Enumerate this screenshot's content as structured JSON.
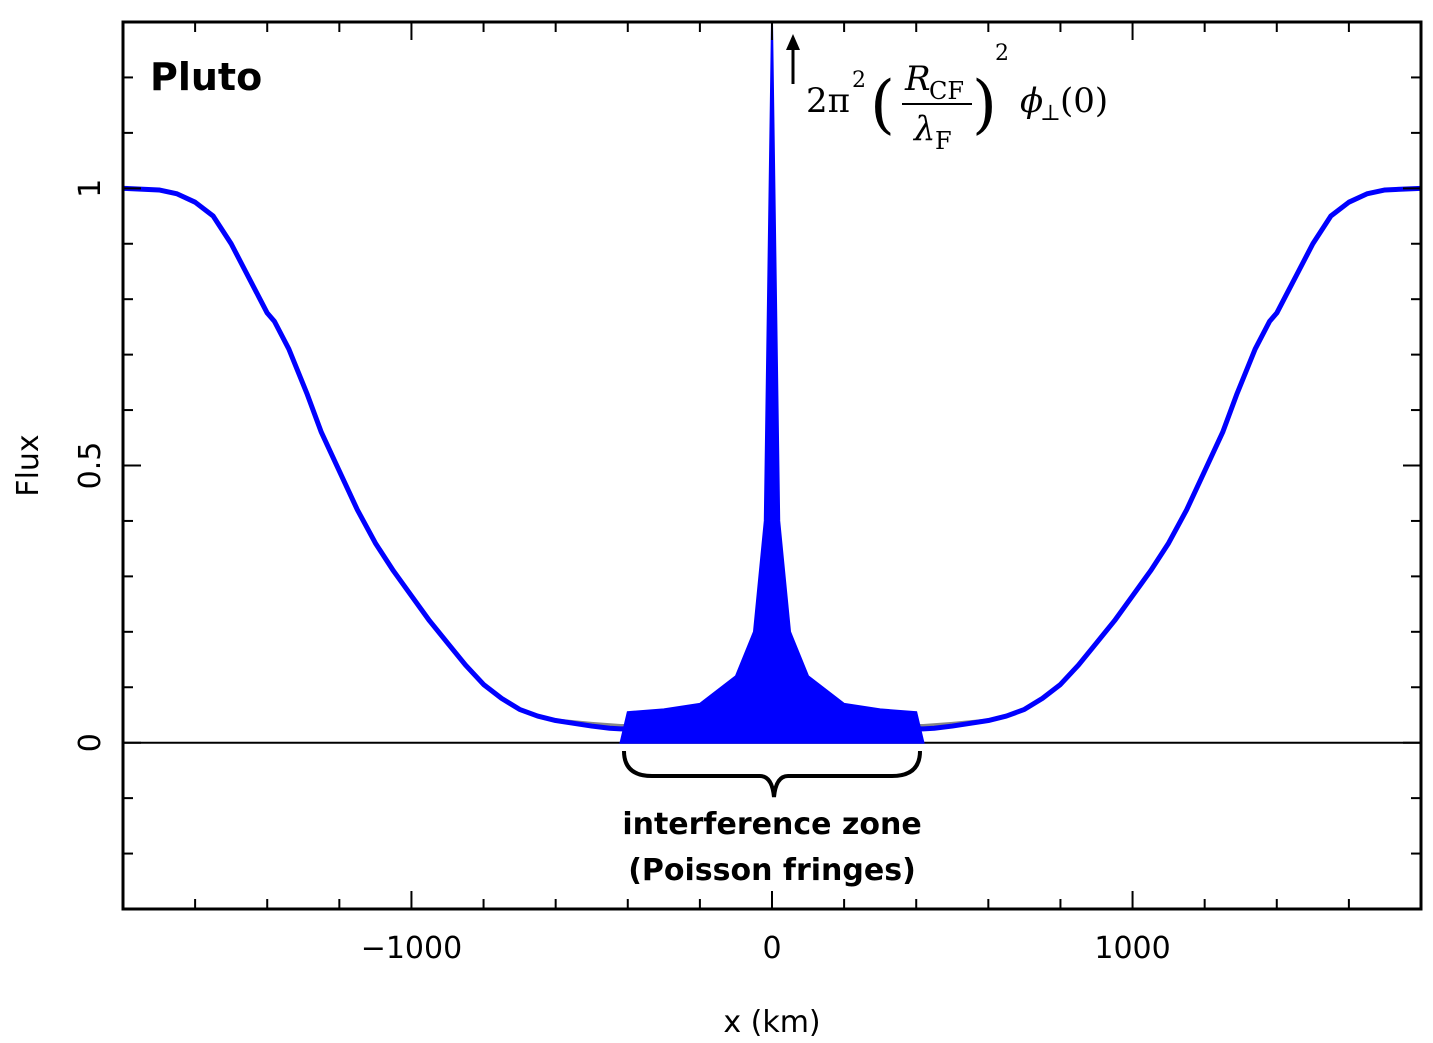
{
  "chart_data": {
    "type": "line",
    "xlabel": "x (km)",
    "ylabel": "Flux",
    "xlim": [
      -1800,
      1800
    ],
    "ylim": [
      -0.3,
      1.3
    ],
    "xticks": [
      -1000,
      0,
      1000
    ],
    "xtick_labels": [
      "−1000",
      "0",
      "1000"
    ],
    "yticks": [
      0,
      0.5,
      1
    ],
    "ytick_labels": [
      "0",
      "0.5",
      "1"
    ],
    "grid": false,
    "annotations": {
      "body_label": "Pluto",
      "zone_line1": "interference zone",
      "zone_line2": "(Poisson fringes)",
      "peak_formula": {
        "coef": "2π",
        "coef_exp": "2",
        "num_var": "R",
        "num_sub": "CF",
        "den_var": "λ",
        "den_sub": "F",
        "outer_exp": "2",
        "tail_var": "ϕ",
        "tail_sub": "⊥",
        "tail_arg": "(0)"
      }
    },
    "series": [
      {
        "color": "#0000ff",
        "x": [
          -1800,
          -1700,
          -1650,
          -1600,
          -1550,
          -1500,
          -1460,
          -1420,
          -1400,
          -1380,
          -1340,
          -1290,
          -1250,
          -1200,
          -1150,
          -1100,
          -1050,
          -1000,
          -950,
          -900,
          -850,
          -800,
          -750,
          -700,
          -650,
          -600,
          -550,
          -500,
          -450,
          -420,
          420,
          450,
          500,
          550,
          600,
          650,
          700,
          750,
          800,
          850,
          900,
          950,
          1000,
          1050,
          1100,
          1150,
          1200,
          1250,
          1290,
          1340,
          1380,
          1400,
          1420,
          1460,
          1500,
          1550,
          1600,
          1650,
          1700,
          1800
        ],
        "y": [
          1.0,
          0.997,
          0.99,
          0.975,
          0.95,
          0.9,
          0.85,
          0.8,
          0.775,
          0.76,
          0.71,
          0.63,
          0.56,
          0.49,
          0.42,
          0.36,
          0.31,
          0.265,
          0.22,
          0.18,
          0.14,
          0.105,
          0.08,
          0.06,
          0.048,
          0.04,
          0.035,
          0.03,
          0.026,
          0.025,
          0.025,
          0.026,
          0.03,
          0.035,
          0.04,
          0.048,
          0.06,
          0.08,
          0.105,
          0.14,
          0.18,
          0.22,
          0.265,
          0.31,
          0.36,
          0.42,
          0.49,
          0.56,
          0.63,
          0.71,
          0.76,
          0.775,
          0.8,
          0.85,
          0.9,
          0.95,
          0.975,
          0.99,
          0.997,
          1.0
        ]
      },
      {
        "color": "#0000ff",
        "x": [
          -420,
          -400,
          -300,
          -200,
          -100,
          -50,
          -20,
          0,
          20,
          50,
          100,
          200,
          300,
          400,
          420
        ],
        "y": [
          0.0,
          0.055,
          0.06,
          0.07,
          0.12,
          0.2,
          0.4,
          1.3,
          0.4,
          0.2,
          0.12,
          0.07,
          0.06,
          0.055,
          0.0
        ]
      },
      {
        "color": "#888888",
        "x": [
          -600,
          -500,
          -420,
          420,
          500,
          600
        ],
        "y": [
          0.04,
          0.034,
          0.03,
          0.03,
          0.034,
          0.04
        ]
      }
    ]
  }
}
